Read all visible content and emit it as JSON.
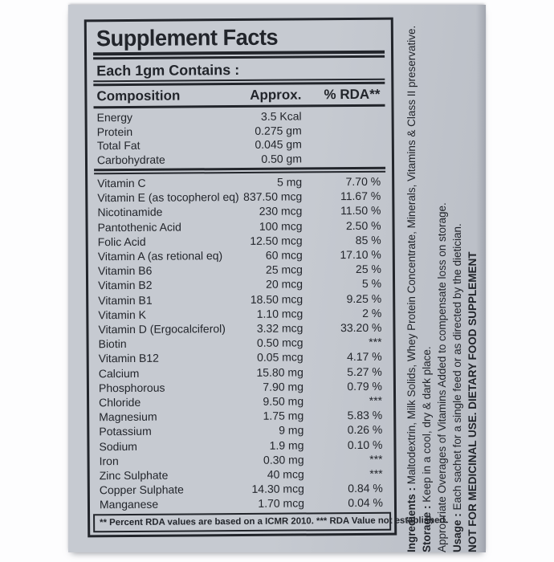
{
  "colors": {
    "photo_background": "#fdfdfe",
    "label_background": "#c6cad1",
    "label_background_dark": "#b9bdc5",
    "ink": "#22252b"
  },
  "panel": {
    "title": "Supplement Facts",
    "serving_statement": "Each 1gm Contains :",
    "header": {
      "composition": "Composition",
      "approx": "Approx.",
      "rda": "% RDA**"
    },
    "footnote": "** Percent RDA values are based on a ICMR 2010. *** RDA Value not established."
  },
  "table": {
    "macro_rows": [
      {
        "name": "Energy",
        "amount": "3.5 Kcal",
        "rda": ""
      },
      {
        "name": "Protein",
        "amount": "0.275 gm",
        "rda": ""
      },
      {
        "name": "Total Fat",
        "amount": "0.045 gm",
        "rda": ""
      },
      {
        "name": "Carbohydrate",
        "amount": "0.50 gm",
        "rda": ""
      }
    ],
    "nutrient_rows": [
      {
        "name": "Vitamin C",
        "amount": "5 mg",
        "rda": "7.70 %"
      },
      {
        "name": "Vitamin E (as tocopherol eq)",
        "amount": "837.50 mcg",
        "rda": "11.67 %"
      },
      {
        "name": "Nicotinamide",
        "amount": "230 mcg",
        "rda": "11.50 %"
      },
      {
        "name": "Pantothenic Acid",
        "amount": "100 mcg",
        "rda": "2.50 %"
      },
      {
        "name": "Folic Acid",
        "amount": "12.50 mcg",
        "rda": "85 %"
      },
      {
        "name": "Vitamin A (as retional eq)",
        "amount": "60 mcg",
        "rda": "17.10 %"
      },
      {
        "name": "Vitamin B6",
        "amount": "25 mcg",
        "rda": "25 %"
      },
      {
        "name": "Vitamin B2",
        "amount": "20 mcg",
        "rda": "5 %"
      },
      {
        "name": "Vitamin B1",
        "amount": "18.50 mcg",
        "rda": "9.25 %"
      },
      {
        "name": "Vitamin K",
        "amount": "1.10 mcg",
        "rda": "2 %"
      },
      {
        "name": "Vitamin D (Ergocalciferol)",
        "amount": "3.32 mcg",
        "rda": "33.20 %"
      },
      {
        "name": "Biotin",
        "amount": "0.50 mcg",
        "rda": "***"
      },
      {
        "name": "Vitamin B12",
        "amount": "0.05 mcg",
        "rda": "4.17 %"
      },
      {
        "name": "Calcium",
        "amount": "15.80 mg",
        "rda": "5.27 %"
      },
      {
        "name": "Phosphorous",
        "amount": "7.90 mg",
        "rda": "0.79 %"
      },
      {
        "name": "Chloride",
        "amount": "9.50 mg",
        "rda": "***"
      },
      {
        "name": "Magnesium",
        "amount": "1.75 mg",
        "rda": "5.83 %"
      },
      {
        "name": "Potassium",
        "amount": "9 mg",
        "rda": "0.26 %"
      },
      {
        "name": "Sodium",
        "amount": "1.9 mg",
        "rda": "0.10 %"
      },
      {
        "name": "Iron",
        "amount": "0.30 mg",
        "rda": "***"
      },
      {
        "name": "Zinc Sulphate",
        "amount": "40 mcg",
        "rda": "***"
      },
      {
        "name": "Copper Sulphate",
        "amount": "14.30 mcg",
        "rda": "0.84 %"
      },
      {
        "name": "Manganese",
        "amount": "1.70 mcg",
        "rda": "0.04 %"
      }
    ]
  },
  "side_text": {
    "lines": [
      {
        "prefix": "Ingredients :",
        "rest": " Maltodextrin, Milk Solids, Whey Protein Concentrate, Minerals, Vitamins & Class II preservative."
      },
      {
        "prefix": "Storage :",
        "rest": " Keep in a cool, dry & dark place."
      },
      {
        "prefix": "",
        "rest": "Appropriate Overages of Vitamins Added to compensate loss on storage."
      },
      {
        "prefix": "Usage :",
        "rest": " Each sachet for a single feed or as directed by the dietician."
      },
      {
        "prefix": "NOT FOR MEDICINAL USE. DIETARY FOOD SUPPLEMENT",
        "rest": ""
      }
    ]
  }
}
